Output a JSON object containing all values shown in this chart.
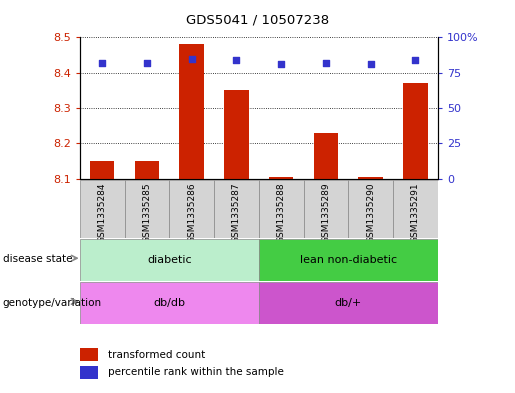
{
  "title": "GDS5041 / 10507238",
  "samples": [
    "GSM1335284",
    "GSM1335285",
    "GSM1335286",
    "GSM1335287",
    "GSM1335288",
    "GSM1335289",
    "GSM1335290",
    "GSM1335291"
  ],
  "transformed_counts": [
    8.15,
    8.15,
    8.48,
    8.35,
    8.105,
    8.23,
    8.105,
    8.37
  ],
  "percentile_ranks": [
    82,
    82,
    85,
    84,
    81,
    82,
    81,
    84
  ],
  "ylim_left": [
    8.1,
    8.5
  ],
  "ylim_right": [
    0,
    100
  ],
  "right_ticks": [
    0,
    25,
    50,
    75,
    100
  ],
  "right_tick_labels": [
    "0",
    "25",
    "50",
    "75",
    "100%"
  ],
  "left_ticks": [
    8.1,
    8.2,
    8.3,
    8.4,
    8.5
  ],
  "bar_color": "#cc2200",
  "dot_color": "#3333cc",
  "disease_state_label": "disease state",
  "genotype_label": "genotype/variation",
  "legend_bar_label": "transformed count",
  "legend_dot_label": "percentile rank within the sample",
  "plot_bg": "#ffffff",
  "base_value": 8.1,
  "disease1_color": "#bbeecc",
  "disease2_color": "#44cc44",
  "geno1_color": "#ee88ee",
  "geno2_color": "#cc55cc",
  "sample_box_color": "#d4d4d4",
  "sample_box_edge": "#888888"
}
